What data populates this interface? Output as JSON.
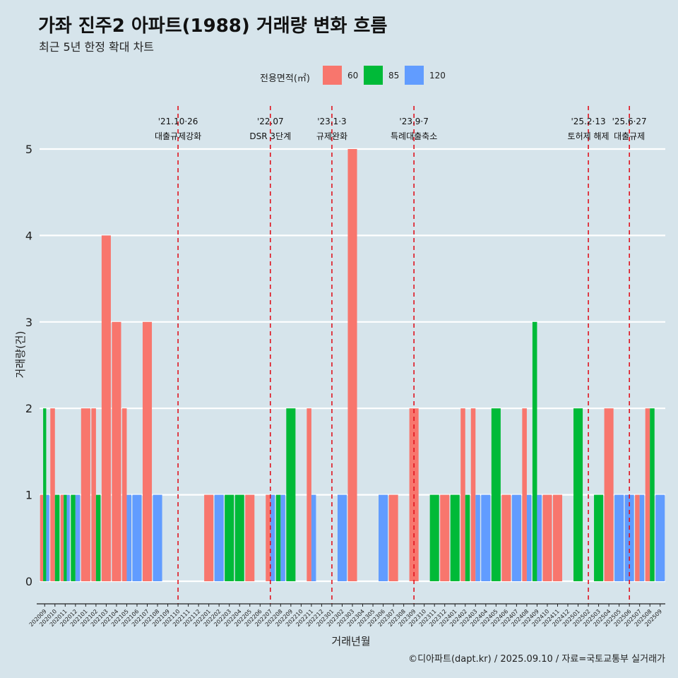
{
  "header": {
    "title": "가좌 진주2 아파트(1988) 거래량 변화 흐름",
    "subtitle": "최근 5년 한정 확대 차트"
  },
  "legend": {
    "title": "전용면적(㎡)",
    "items": [
      {
        "label": "60",
        "color": "#f8766d"
      },
      {
        "label": "85",
        "color": "#00ba38"
      },
      {
        "label": "120",
        "color": "#619cff"
      }
    ]
  },
  "caption": "©디아파트(dapt.kr) / 2025.09.10 / 자료=국토교통부 실거래가",
  "chart_data": {
    "type": "bar",
    "xlabel": "거래년월",
    "ylabel": "거래량(건)",
    "ylim": [
      0,
      5
    ],
    "yticks": [
      0,
      1,
      2,
      3,
      4,
      5
    ],
    "grid": "horizontal",
    "legend_position": "top",
    "categories": [
      "202009",
      "202010",
      "202011",
      "202012",
      "202101",
      "202102",
      "202103",
      "202104",
      "202105",
      "202106",
      "202107",
      "202108",
      "202109",
      "202110",
      "202111",
      "202112",
      "202201",
      "202202",
      "202203",
      "202204",
      "202205",
      "202206",
      "202207",
      "202208",
      "202209",
      "202210",
      "202211",
      "202212",
      "202301",
      "202302",
      "202303",
      "202304",
      "202305",
      "202306",
      "202307",
      "202308",
      "202309",
      "202310",
      "202311",
      "202312",
      "202401",
      "202402",
      "202403",
      "202404",
      "202405",
      "202406",
      "202407",
      "202408",
      "202409",
      "202410",
      "202411",
      "202412",
      "202501",
      "202502",
      "202503",
      "202504",
      "202505",
      "202506",
      "202507",
      "202508",
      "202509"
    ],
    "series": [
      {
        "name": "60",
        "color": "#f8766d",
        "values": [
          1,
          2,
          1,
          0,
          2,
          2,
          4,
          3,
          2,
          0,
          3,
          0,
          0,
          0,
          0,
          0,
          1,
          0,
          0,
          0,
          1,
          0,
          1,
          0,
          0,
          0,
          2,
          0,
          0,
          0,
          5,
          0,
          0,
          0,
          1,
          0,
          2,
          0,
          0,
          1,
          0,
          2,
          2,
          0,
          0,
          1,
          0,
          2,
          0,
          1,
          1,
          0,
          0,
          0,
          0,
          2,
          0,
          0,
          1,
          2,
          0
        ]
      },
      {
        "name": "85",
        "color": "#00ba38",
        "values": [
          2,
          1,
          1,
          1,
          0,
          1,
          0,
          0,
          0,
          0,
          0,
          0,
          0,
          0,
          0,
          0,
          0,
          0,
          1,
          1,
          0,
          0,
          0,
          1,
          2,
          0,
          0,
          0,
          0,
          0,
          0,
          0,
          0,
          0,
          0,
          0,
          0,
          0,
          1,
          0,
          1,
          1,
          0,
          0,
          2,
          0,
          0,
          0,
          3,
          0,
          0,
          0,
          2,
          0,
          1,
          0,
          0,
          0,
          0,
          2,
          0
        ]
      },
      {
        "name": "120",
        "color": "#619cff",
        "values": [
          1,
          0,
          1,
          1,
          0,
          0,
          0,
          0,
          1,
          1,
          0,
          1,
          0,
          0,
          0,
          0,
          0,
          1,
          0,
          0,
          0,
          0,
          1,
          1,
          0,
          0,
          1,
          0,
          0,
          1,
          0,
          0,
          0,
          1,
          0,
          0,
          0,
          0,
          0,
          0,
          0,
          0,
          1,
          1,
          0,
          0,
          1,
          1,
          1,
          0,
          0,
          0,
          0,
          0,
          0,
          0,
          1,
          1,
          1,
          0,
          1
        ]
      }
    ],
    "annotations": [
      {
        "month": "202110",
        "date": "'21.10·26",
        "label": "대출규제강화"
      },
      {
        "month": "202207",
        "date": "'22.07",
        "label": "DSR 3단계"
      },
      {
        "month": "202301",
        "date": "'23.1·3",
        "label": "규제완화"
      },
      {
        "month": "202309",
        "date": "'23.9·7",
        "label": "특례대출축소"
      },
      {
        "month": "202502",
        "date": "'25.2·13",
        "label": "토허제 해제"
      },
      {
        "month": "202506",
        "date": "'25.6·27",
        "label": "대출규제"
      }
    ]
  }
}
